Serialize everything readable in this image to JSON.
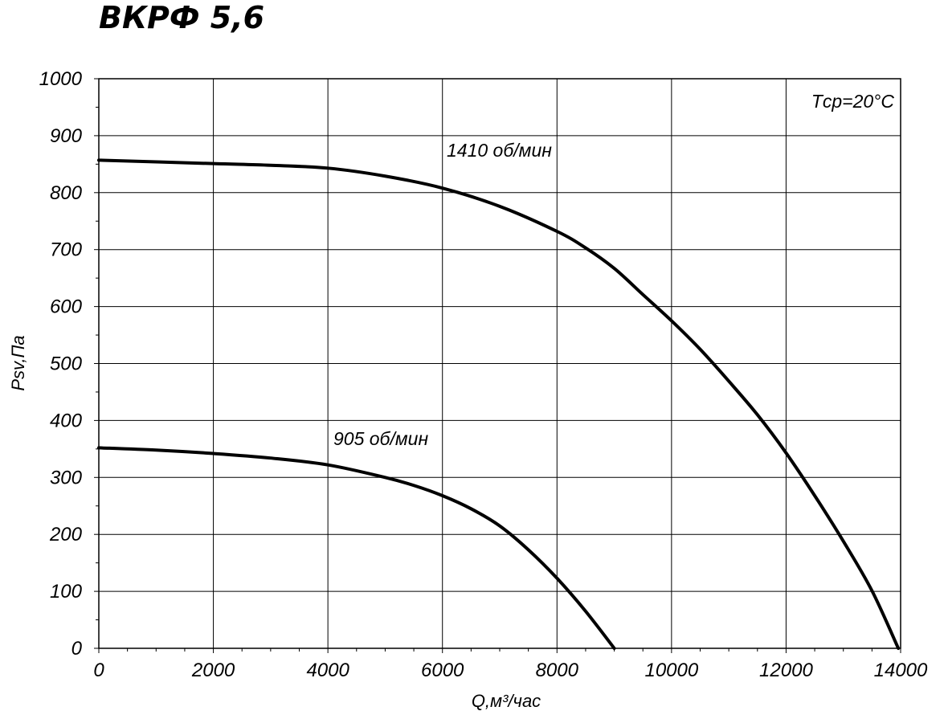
{
  "chart_data": {
    "type": "line",
    "title": "ВКРФ 5,6",
    "xlabel": "Q,м³/час",
    "ylabel": "Psv,Па",
    "xlim": [
      0,
      14000
    ],
    "ylim": [
      0,
      1000
    ],
    "x_ticks": [
      "0",
      "2000",
      "4000",
      "6000",
      "8000",
      "10000",
      "12000",
      "14000"
    ],
    "y_ticks": [
      "0",
      "100",
      "200",
      "300",
      "400",
      "500",
      "600",
      "700",
      "800",
      "900",
      "1000"
    ],
    "grid": true,
    "annotation": "Tср=20°C",
    "series": [
      {
        "name": "1410 об/мин",
        "x": [
          0,
          2000,
          3000,
          4000,
          5000,
          6000,
          7000,
          8000,
          8500,
          9000,
          9500,
          10000,
          10500,
          11000,
          11500,
          12000,
          12500,
          13000,
          13500,
          13960
        ],
        "y": [
          857,
          851,
          848,
          843,
          829,
          808,
          776,
          732,
          703,
          667,
          621,
          575,
          525,
          469,
          410,
          343,
          268,
          188,
          101,
          0
        ]
      },
      {
        "name": "905 об/мин",
        "x": [
          0,
          1000,
          2000,
          3000,
          4000,
          5000,
          5500,
          6000,
          6500,
          7000,
          7500,
          8000,
          8500,
          9000
        ],
        "y": [
          352,
          348,
          342,
          334,
          322,
          300,
          286,
          268,
          245,
          215,
          173,
          123,
          65,
          0
        ]
      }
    ]
  }
}
